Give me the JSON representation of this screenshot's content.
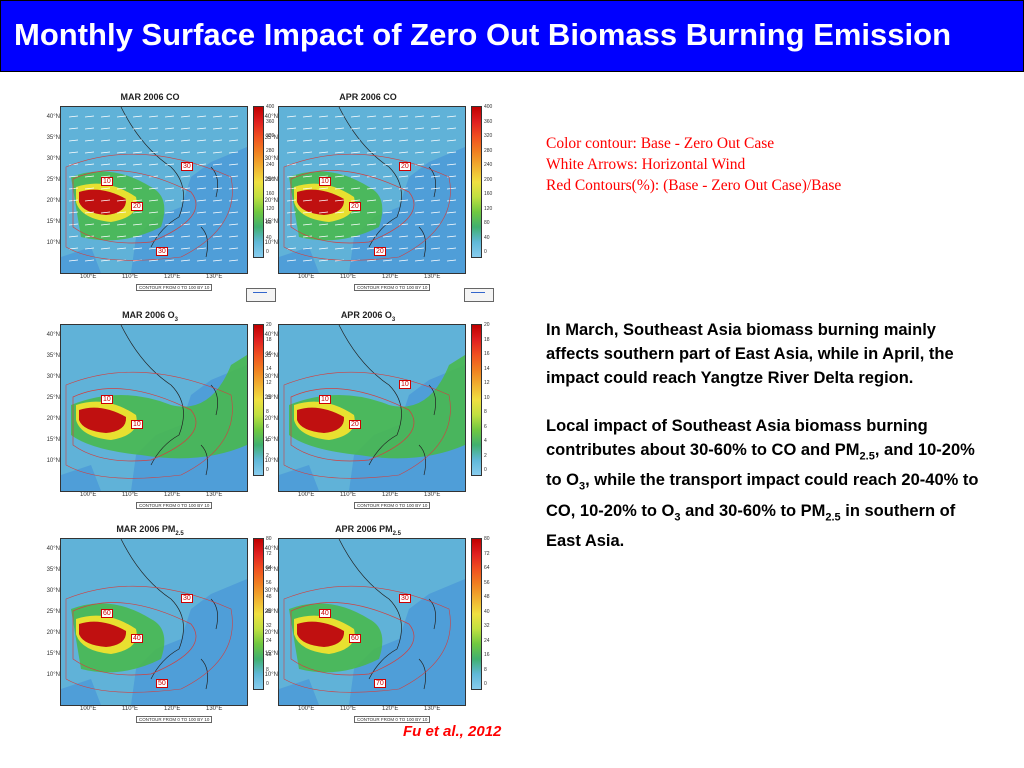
{
  "slide": {
    "title": "Monthly Surface Impact of Zero Out Biomass Burning Emission",
    "title_bg": "#0000ff",
    "title_color": "#ffffff"
  },
  "legend": {
    "line1": "Color contour: Base - Zero Out Case",
    "line2": "White Arrows: Horizontal Wind",
    "line3": "Red Contours(%): (Base - Zero Out Case)/Base",
    "color": "#ff0000"
  },
  "body": {
    "p1": "In March, Southeast Asia biomass burning mainly affects southern part of East Asia, while in April, the impact could reach Yangtze River Delta region.",
    "p2_a": "Local impact of Southeast Asia biomass burning contributes about 30-60% to CO and PM",
    "p2_sub1": "2.5",
    "p2_b": ", and 10-20% to O",
    "p2_sub2": "3",
    "p2_c": ", while the transport impact could reach 20-40% to CO, 10-20% to O",
    "p2_sub3": "3",
    "p2_d": " and 30-60% to PM",
    "p2_sub4": "2.5",
    "p2_e": " in southern of East Asia."
  },
  "citation": "Fu et al., 2012",
  "axes": {
    "lat_labels": [
      "40°N",
      "35°N",
      "30°N",
      "25°N",
      "20°N",
      "15°N",
      "10°N"
    ],
    "lon_labels": [
      "100°E",
      "110°E",
      "120°E",
      "130°E"
    ],
    "contour_note": "CONTOUR FROM 0 TO 100 BY 10"
  },
  "panels": [
    {
      "title": "MAR 2006 CO",
      "ticks": [
        "400",
        "360",
        "320",
        "280",
        "240",
        "200",
        "160",
        "120",
        "80",
        "40",
        "0"
      ],
      "labels": [
        "10",
        "20",
        "30",
        "30"
      ]
    },
    {
      "title": "APR 2006 CO",
      "ticks": [
        "400",
        "360",
        "320",
        "280",
        "240",
        "200",
        "160",
        "120",
        "80",
        "40",
        "0"
      ],
      "labels": [
        "10",
        "20",
        "20",
        "20"
      ]
    },
    {
      "title": "MAR 2006 O",
      "sub": "3",
      "ticks": [
        "20",
        "18",
        "16",
        "14",
        "12",
        "10",
        "8",
        "6",
        "4",
        "2",
        "0"
      ],
      "labels": [
        "10",
        "10"
      ]
    },
    {
      "title": "APR 2006 O",
      "sub": "3",
      "ticks": [
        "20",
        "18",
        "16",
        "14",
        "12",
        "10",
        "8",
        "6",
        "4",
        "2",
        "0"
      ],
      "labels": [
        "10",
        "20",
        "10"
      ]
    },
    {
      "title": "MAR 2006 PM",
      "sub": "2.5",
      "ticks": [
        "80",
        "72",
        "64",
        "56",
        "48",
        "40",
        "32",
        "24",
        "16",
        "8",
        "0"
      ],
      "labels": [
        "60",
        "40",
        "30",
        "50"
      ]
    },
    {
      "title": "APR 2006 PM",
      "sub": "2.5",
      "ticks": [
        "80",
        "72",
        "64",
        "56",
        "48",
        "40",
        "32",
        "24",
        "16",
        "8",
        "0"
      ],
      "labels": [
        "40",
        "60",
        "30",
        "70"
      ]
    }
  ],
  "colors": {
    "ocean": "#4f9ed8",
    "land_low": "#6cc0d8",
    "plume_green": "#48b848",
    "plume_yellow": "#e8e030",
    "plume_red": "#c01010"
  }
}
